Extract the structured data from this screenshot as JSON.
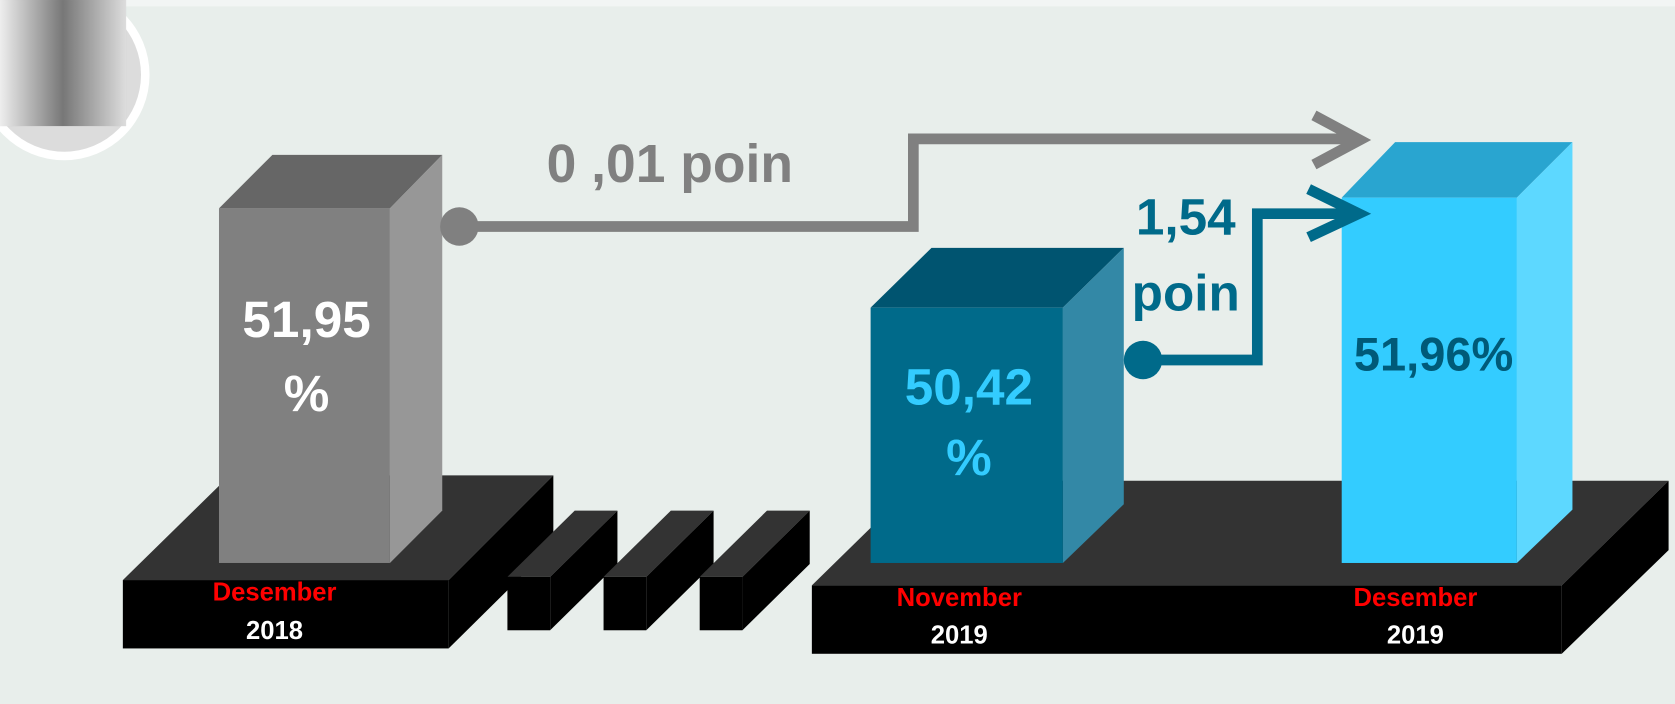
{
  "bars": [
    {
      "label_lines": [
        "51,95",
        "%"
      ],
      "month": "Desember",
      "year": "2018"
    },
    {
      "label_lines": [
        "50,42",
        "%"
      ],
      "month": "November",
      "year": "2019"
    },
    {
      "label_lines": [
        "51,96%"
      ],
      "month": "Desember",
      "year": "2019"
    }
  ],
  "changes": [
    {
      "lines": [
        "0 ,01 poin"
      ]
    },
    {
      "lines": [
        "1,54",
        "poin"
      ]
    }
  ]
}
